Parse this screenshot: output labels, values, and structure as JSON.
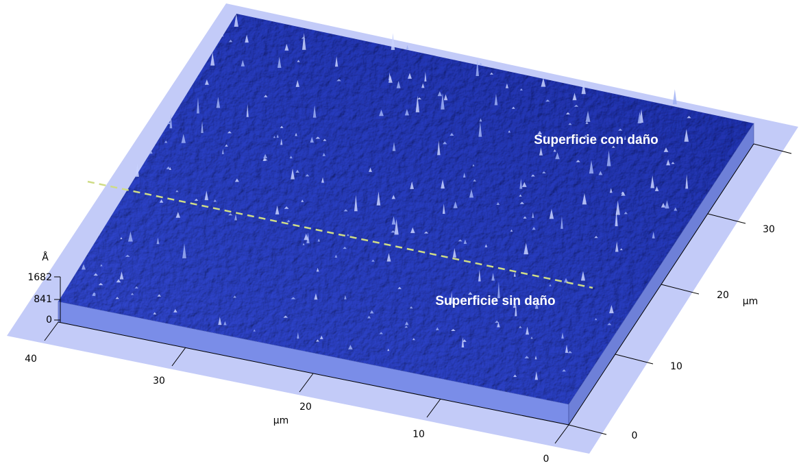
{
  "z_axis": {
    "unit": "Å",
    "ticks": [
      1682,
      841,
      0
    ]
  },
  "x_axis": {
    "unit": "µm",
    "ticks": [
      40,
      30,
      20,
      10,
      0
    ]
  },
  "y_axis": {
    "unit": "µm",
    "ticks": [
      0,
      10,
      20,
      30
    ]
  },
  "annotations": {
    "damaged": "Superficie con daño",
    "undamaged": "Superficie sin daño"
  }
}
